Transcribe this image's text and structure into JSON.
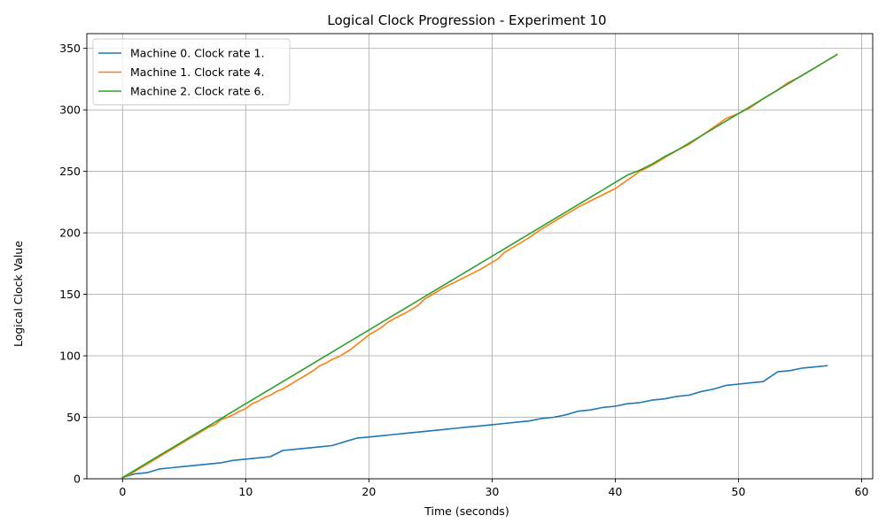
{
  "chart_data": {
    "type": "line",
    "title": "Logical Clock Progression - Experiment 10",
    "xlabel": "Time (seconds)",
    "ylabel": "Logical Clock Value",
    "xlim": [
      -2.9,
      60.9
    ],
    "ylim": [
      0,
      362
    ],
    "xticks": [
      0,
      10,
      20,
      30,
      40,
      50,
      60
    ],
    "yticks": [
      0,
      50,
      100,
      150,
      200,
      250,
      300,
      350
    ],
    "grid": true,
    "legend_position": "top-left",
    "series": [
      {
        "name": "Machine 0. Clock rate 1.",
        "color": "#1f77b4",
        "x": [
          0,
          1,
          2,
          3,
          4,
          5,
          6,
          7,
          8,
          9,
          10,
          11,
          12,
          13,
          14,
          15,
          16,
          17,
          18,
          19,
          20,
          21,
          22,
          23,
          24,
          25,
          26,
          27,
          28,
          29,
          30,
          31,
          32,
          33,
          34,
          35,
          36,
          37,
          38,
          39,
          40,
          41,
          42,
          43,
          44,
          45,
          46,
          47,
          48,
          49,
          50,
          51,
          52,
          53.2,
          54.2,
          55.2,
          56.2,
          57.2
        ],
        "y": [
          1,
          4,
          5,
          8,
          9,
          10,
          11,
          12,
          13,
          15,
          16,
          17,
          18,
          23,
          24,
          25,
          26,
          27,
          30,
          33,
          34,
          35,
          36,
          37,
          38,
          39,
          40,
          41,
          42,
          43,
          44,
          45,
          46,
          47,
          49,
          50,
          52,
          55,
          56,
          58,
          59,
          61,
          62,
          64,
          65,
          67,
          68,
          71,
          73,
          76,
          77,
          78,
          79,
          87,
          88,
          90,
          91,
          92
        ]
      },
      {
        "name": "Machine 1. Clock rate 4.",
        "color": "#ff7f0e",
        "x": [
          0,
          0.5,
          1,
          1.5,
          2,
          2.5,
          3,
          3.5,
          4,
          4.5,
          5,
          5.5,
          6,
          6.5,
          7,
          7.5,
          8,
          8.5,
          9,
          9.5,
          10,
          10.5,
          11,
          11.5,
          12,
          12.5,
          13,
          13.5,
          14,
          14.5,
          15,
          15.5,
          16,
          16.5,
          17,
          17.5,
          18,
          18.5,
          19,
          19.5,
          20,
          20.5,
          21,
          21.5,
          22,
          23,
          24,
          24.5,
          25,
          26,
          27,
          28,
          29,
          29.5,
          30,
          30.5,
          31,
          32,
          33,
          34,
          35,
          36,
          36.5,
          37,
          38,
          39,
          40,
          41,
          42,
          43,
          44,
          45,
          46,
          47,
          48,
          49,
          50,
          51,
          52,
          53,
          54,
          55,
          56,
          57,
          58
        ],
        "y": [
          1,
          3,
          6,
          9,
          12,
          15,
          18,
          21,
          24,
          27,
          30,
          33,
          36,
          39,
          42,
          44,
          48,
          50,
          52,
          55,
          57,
          61,
          63,
          66,
          68,
          71,
          73,
          76,
          79,
          82,
          85,
          88,
          92,
          94,
          97,
          99,
          102,
          105,
          109,
          113,
          117,
          120,
          123,
          127,
          130,
          135,
          141,
          146,
          149,
          155,
          160,
          165,
          170,
          173,
          176,
          179,
          184,
          190,
          196,
          203,
          209,
          215,
          218,
          221,
          226,
          231,
          236,
          243,
          250,
          255,
          261,
          267,
          272,
          279,
          286,
          293,
          297,
          302,
          309,
          315,
          322,
          327,
          333,
          339,
          345
        ]
      },
      {
        "name": "Machine 2. Clock rate 6.",
        "color": "#2ca02c",
        "x": [
          0,
          1,
          2,
          3,
          4,
          5,
          6,
          7,
          8,
          9,
          10,
          11,
          12,
          13,
          14,
          15,
          16,
          17,
          18,
          19,
          20,
          21,
          22,
          23,
          24,
          25,
          26,
          27,
          28,
          29,
          30,
          31,
          32,
          33,
          34,
          35,
          36,
          37,
          38,
          39,
          40,
          41,
          42,
          43,
          44,
          45,
          46,
          47,
          48,
          49,
          50,
          51,
          52,
          53,
          54,
          55,
          56,
          57,
          58
        ],
        "y": [
          1,
          7,
          13,
          19,
          25,
          31,
          37,
          43,
          49,
          55,
          61,
          67,
          73,
          79,
          85,
          91,
          97,
          103,
          109,
          115,
          121,
          127,
          133,
          139,
          145,
          151,
          157,
          163,
          169,
          175,
          181,
          187,
          193,
          199,
          205,
          211,
          217,
          223,
          229,
          235,
          241,
          247,
          251,
          256,
          262,
          267,
          273,
          279,
          285,
          291,
          297,
          303,
          309,
          315,
          321,
          327,
          333,
          339,
          345
        ]
      }
    ]
  }
}
